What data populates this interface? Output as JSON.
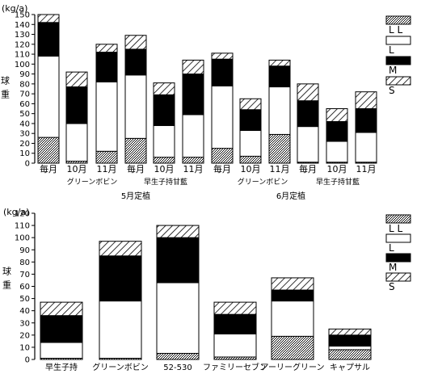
{
  "figure": {
    "stack_order": [
      "LL",
      "L",
      "M",
      "S"
    ]
  },
  "chart_data": [
    {
      "type": "bar",
      "stacked": true,
      "unit_label": "(kg/a)",
      "ylabel": "球重",
      "ylim": [
        0,
        150
      ],
      "yticks": [
        0,
        10,
        20,
        30,
        40,
        50,
        60,
        70,
        80,
        90,
        100,
        110,
        120,
        130,
        140,
        150
      ],
      "grid": false,
      "legend": {
        "placement": "right"
      },
      "categories": [
        "毎月",
        "10月",
        "11月",
        "毎月",
        "10月",
        "11月",
        "毎月",
        "10月",
        "11月",
        "毎月",
        "10月",
        "11月"
      ],
      "group_labels": [
        "グリーンボビン",
        "早生子持甘藍",
        "グリーンボビン",
        "早生子持甘藍"
      ],
      "super_group_labels": [
        "5月定植",
        "6月定植"
      ],
      "series": [
        {
          "name": "LL",
          "values": [
            26,
            2,
            12,
            25,
            6,
            6,
            15,
            7,
            29,
            1,
            1,
            1
          ]
        },
        {
          "name": "L",
          "values": [
            82,
            38,
            70,
            64,
            32,
            43,
            63,
            26,
            48,
            36,
            21,
            30
          ]
        },
        {
          "name": "M",
          "values": [
            34,
            37,
            30,
            26,
            31,
            41,
            27,
            21,
            21,
            26,
            20,
            24
          ]
        },
        {
          "name": "S",
          "values": [
            8,
            15,
            8,
            14,
            12,
            14,
            6,
            11,
            6,
            17,
            13,
            17
          ]
        }
      ]
    },
    {
      "type": "bar",
      "stacked": true,
      "unit_label": "(kg/a)",
      "ylabel": "球重",
      "ylim": [
        0,
        120
      ],
      "yticks": [
        0,
        10,
        20,
        30,
        40,
        50,
        60,
        70,
        80,
        90,
        100,
        110,
        120
      ],
      "grid": false,
      "legend": {
        "placement": "right"
      },
      "categories": [
        "早生子持",
        "グリーンボビン",
        "52-530",
        "ファミリーセブン",
        "アーリーグリーン",
        "キャプサル"
      ],
      "series": [
        {
          "name": "LL",
          "values": [
            1,
            1,
            5,
            2,
            19,
            8
          ]
        },
        {
          "name": "L",
          "values": [
            13,
            47,
            58,
            19,
            29,
            3
          ]
        },
        {
          "name": "M",
          "values": [
            22,
            37,
            37,
            16,
            9,
            9
          ]
        },
        {
          "name": "S",
          "values": [
            11,
            12,
            10,
            10,
            10,
            5
          ]
        }
      ]
    }
  ],
  "legend_labels": [
    {
      "label": "LL",
      "display": "L L"
    },
    {
      "label": "L",
      "display": "L"
    },
    {
      "label": "M",
      "display": "M"
    },
    {
      "label": "S",
      "display": "S"
    }
  ]
}
